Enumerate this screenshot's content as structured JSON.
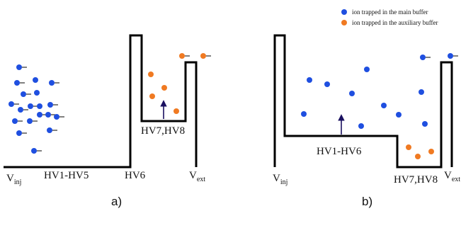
{
  "legend": {
    "main": {
      "text": "ion trapped in the main buffer",
      "color": "#1f4fe0"
    },
    "aux": {
      "text": "ion trapped in the auxiliary buffer",
      "color": "#f07a22"
    }
  },
  "panel_a": {
    "caption": "a)",
    "labels": {
      "vinj_main": "V",
      "vinj_sub": "inj",
      "hv1_hv5": "HV1-HV5",
      "hv6": "HV6",
      "hv7_hv8": "HV7,HV8",
      "vext_main": "V",
      "vext_sub": "ext"
    }
  },
  "panel_b": {
    "caption": "b)",
    "labels": {
      "vinj_main": "V",
      "vinj_sub": "inj",
      "hv1_hv6": "HV1-HV6",
      "hv7_hv8": "HV7,HV8",
      "vext_main": "V",
      "vext_sub": "ext"
    }
  },
  "colors": {
    "line": "#000000",
    "arrow": "#1a1060"
  }
}
